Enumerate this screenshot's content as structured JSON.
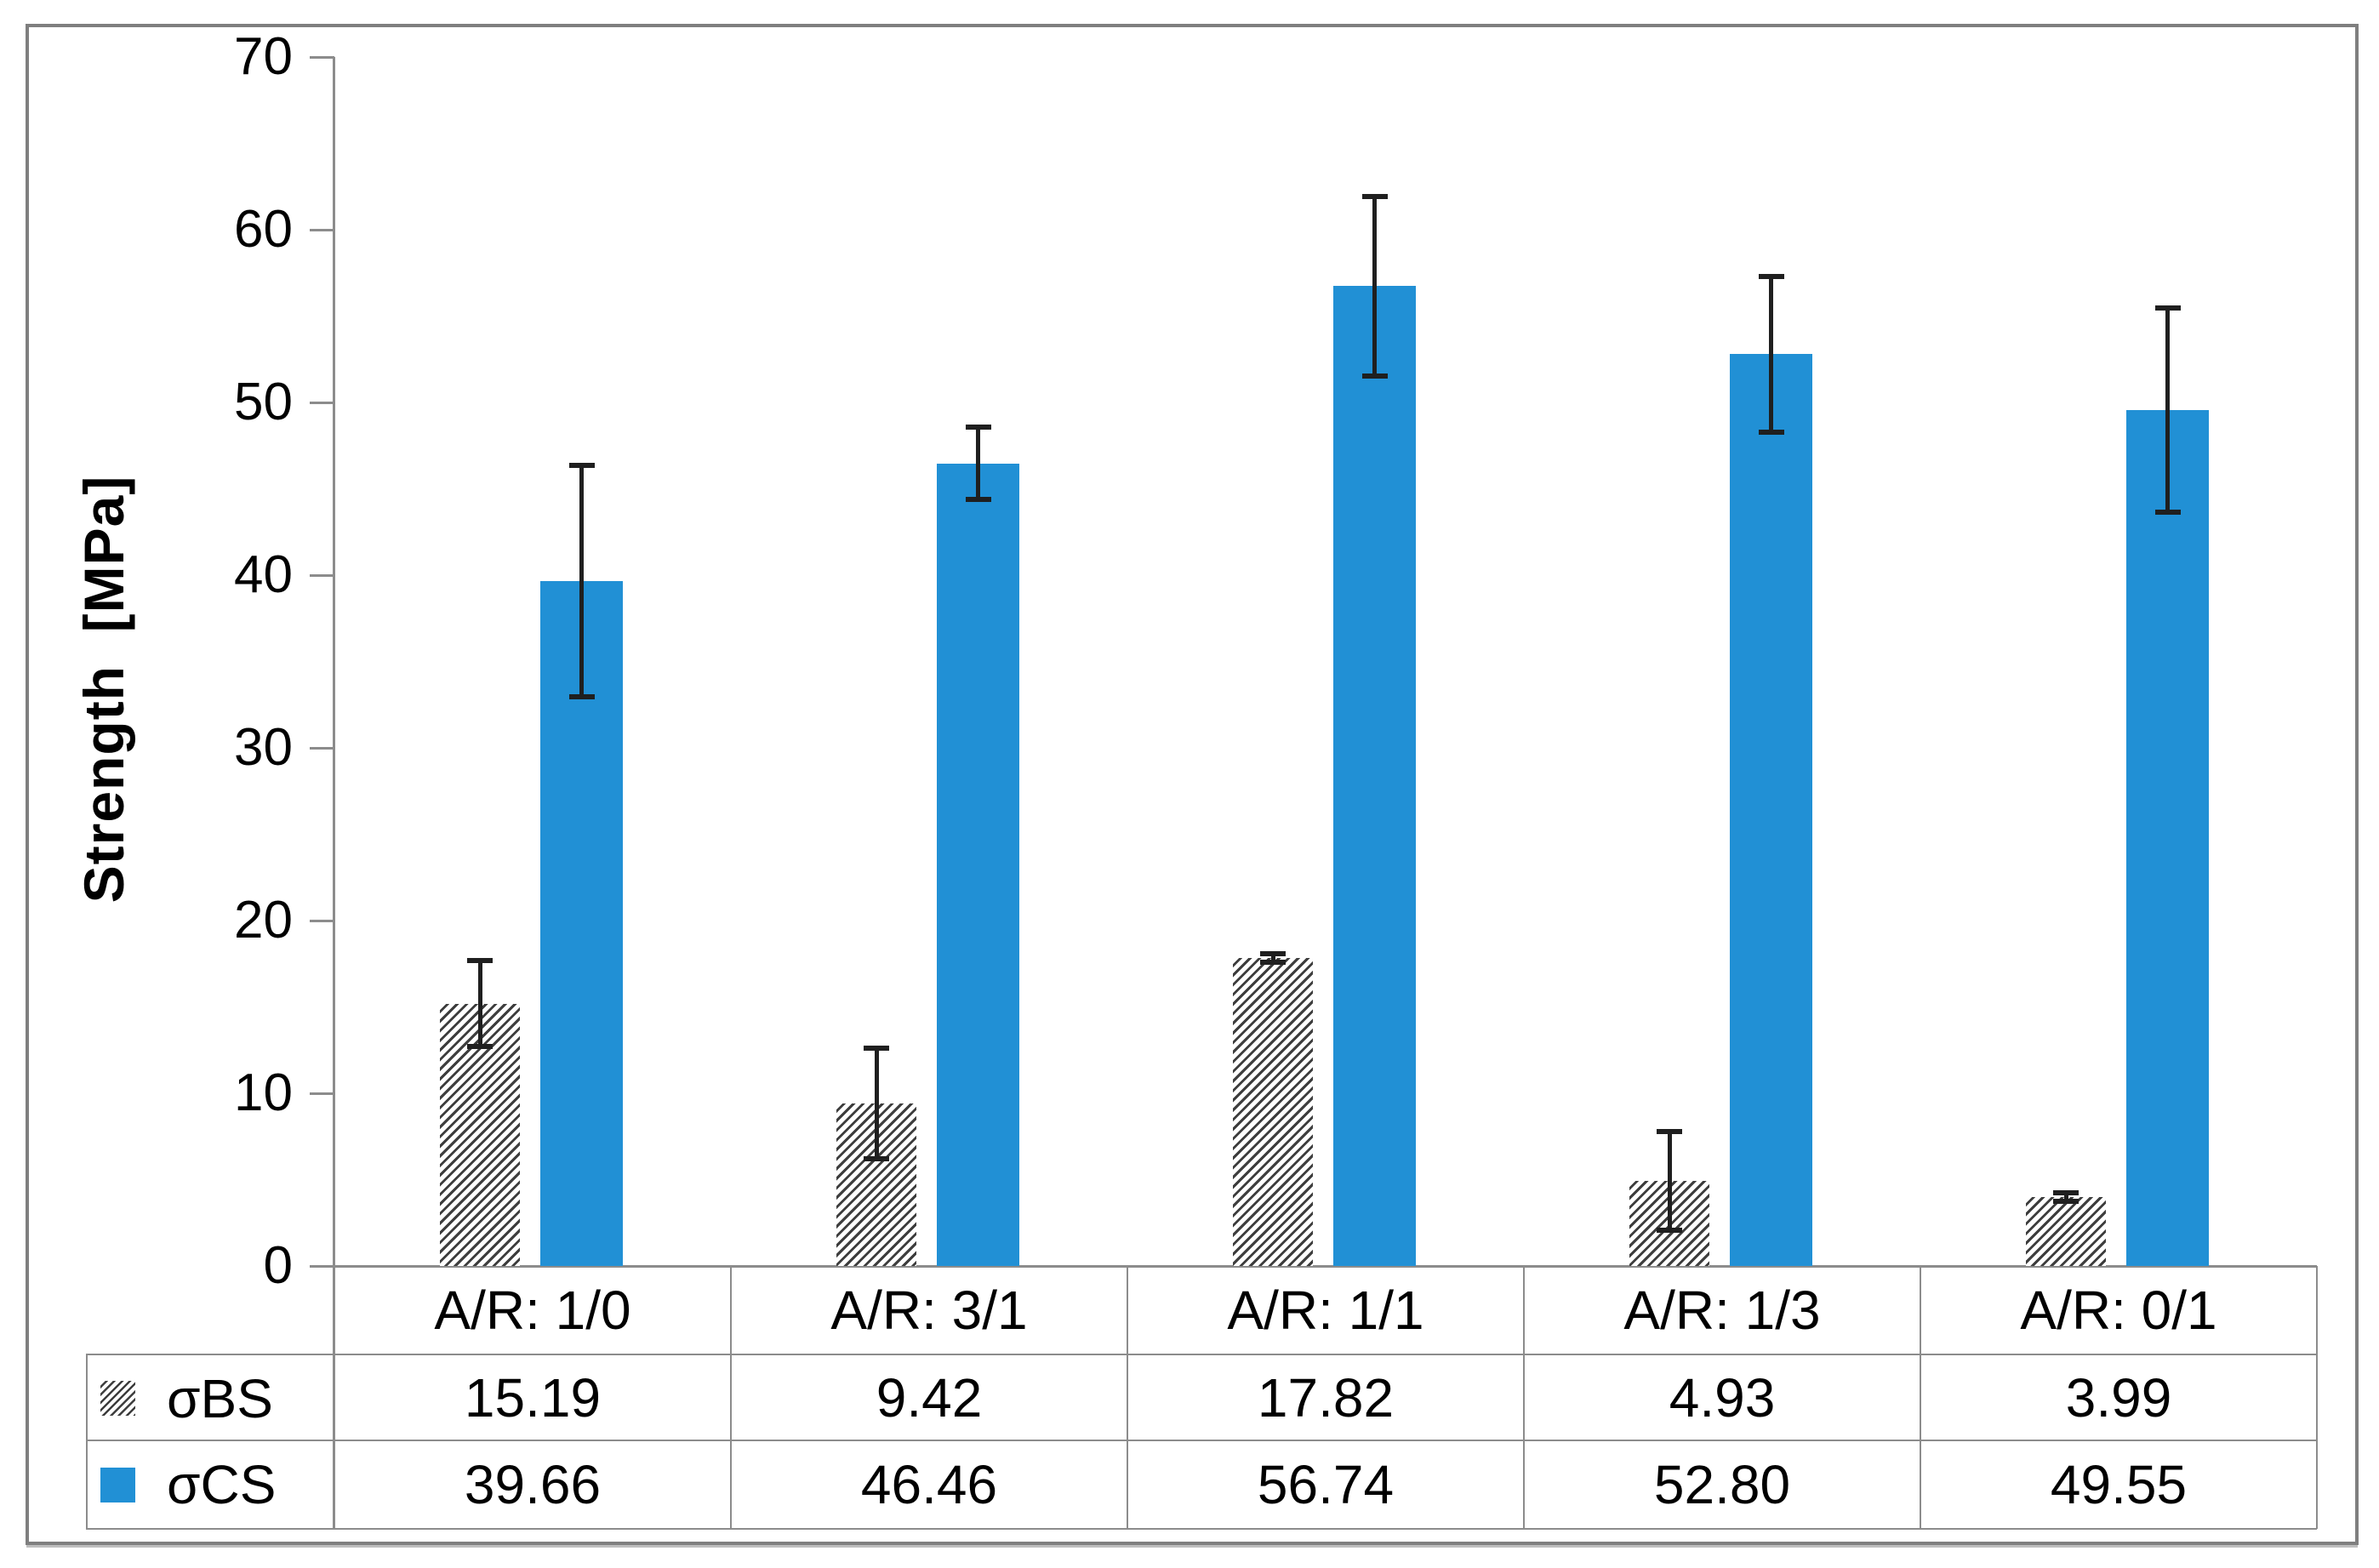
{
  "chart_data": {
    "type": "bar",
    "title": "",
    "ylabel": "Strength  [MPa]",
    "xlabel": "",
    "ylim": [
      0,
      70
    ],
    "yticks": [
      0,
      10,
      20,
      30,
      40,
      50,
      60,
      70
    ],
    "grid": false,
    "legend_position": "left-of-data-table",
    "categories": [
      "A/R: 1/0",
      "A/R: 3/1",
      "A/R: 1/1",
      "A/R: 1/3",
      "A/R: 0/1"
    ],
    "series": [
      {
        "name": "σBS",
        "style": "diagonal-hatch",
        "values": [
          15.19,
          9.42,
          17.82,
          4.93,
          3.99
        ],
        "error_bars": [
          2.5,
          3.2,
          0.25,
          2.85,
          0.25
        ]
      },
      {
        "name": "σCS",
        "style": "solid",
        "color": "#2190d5",
        "values": [
          39.66,
          46.46,
          56.74,
          52.8,
          49.55
        ],
        "error_bars": [
          6.7,
          2.1,
          5.2,
          4.5,
          5.9
        ]
      }
    ]
  },
  "data_table": {
    "display_values": [
      [
        "15.19",
        "9.42",
        "17.82",
        "4.93",
        "3.99"
      ],
      [
        "39.66",
        "46.46",
        "56.74",
        "52.80",
        "49.55"
      ]
    ]
  },
  "colors": {
    "bar_blue": "#2190d5",
    "hatch_line": "#3d3d3d",
    "axis_line": "#8c8c8c",
    "error_bar": "#1f1f1f",
    "frame_border": "#7f7f7f",
    "text": "#000000"
  }
}
